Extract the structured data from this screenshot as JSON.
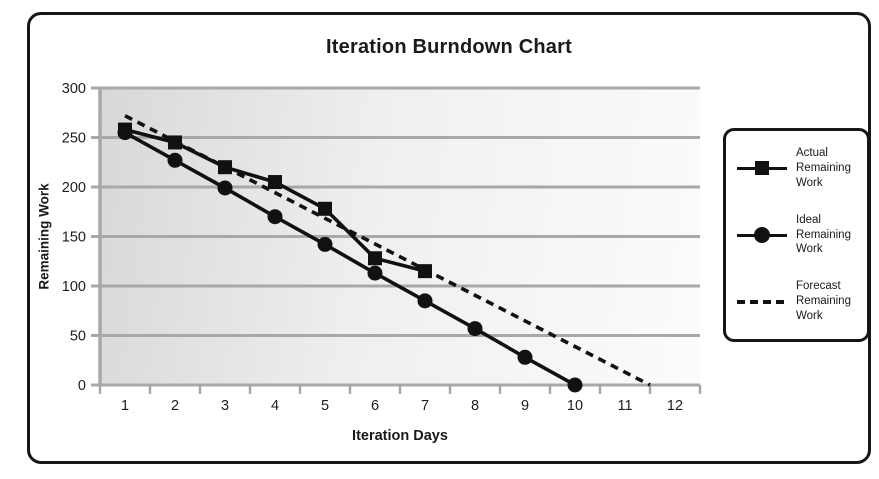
{
  "chart_data": {
    "type": "line",
    "title": "Iteration Burndown Chart",
    "xlabel": "Iteration Days",
    "ylabel": "Remaining Work",
    "x_ticks": [
      1,
      2,
      3,
      4,
      5,
      6,
      7,
      8,
      9,
      10,
      11,
      12
    ],
    "y_ticks": [
      0,
      50,
      100,
      150,
      200,
      250,
      300
    ],
    "ylim": [
      0,
      300
    ],
    "grid": "horizontal",
    "legend_position": "right",
    "colors": {
      "series": "#111111",
      "grid": "#a8a8a8",
      "plot_bg_left": "#d8d8d8",
      "plot_bg_right": "#fcfcfc",
      "frame_border": "#161616"
    },
    "series": [
      {
        "name": "Actual Remaining Work",
        "marker": "square",
        "line": "solid",
        "x": [
          1,
          2,
          3,
          4,
          5,
          6,
          7
        ],
        "values": [
          258,
          245,
          220,
          205,
          178,
          128,
          115
        ]
      },
      {
        "name": "Ideal Remaining Work",
        "marker": "circle",
        "line": "solid",
        "x": [
          1,
          2,
          3,
          4,
          5,
          6,
          7,
          8,
          9,
          10
        ],
        "values": [
          255,
          227,
          199,
          170,
          142,
          113,
          85,
          57,
          28,
          0
        ]
      },
      {
        "name": "Forecast Remaining Work",
        "marker": "none",
        "line": "dashed",
        "x": [
          1,
          11.5
        ],
        "values": [
          272,
          0
        ]
      }
    ]
  }
}
